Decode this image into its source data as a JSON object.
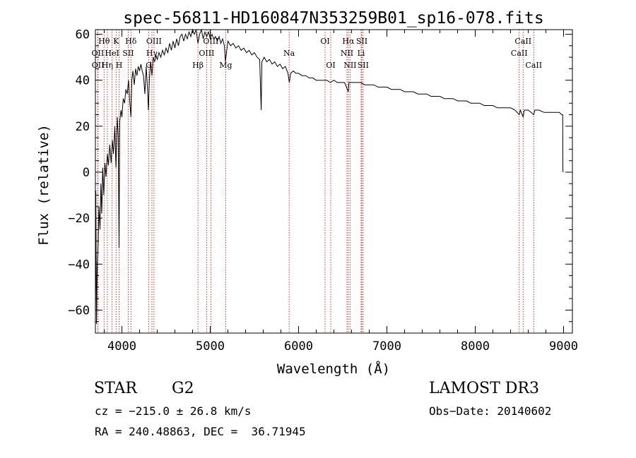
{
  "chart_data": {
    "type": "line",
    "title": "spec-56811-HD160847N353259B01_sp16-078.fits",
    "xlabel": "Wavelength (Å)",
    "ylabel": "Flux (relative)",
    "xlim": [
      3700,
      9100
    ],
    "ylim": [
      -70,
      62
    ],
    "xticks": [
      4000,
      5000,
      6000,
      7000,
      8000,
      9000
    ],
    "yticks": [
      -60,
      -40,
      -20,
      0,
      20,
      40,
      60
    ],
    "series": [
      {
        "name": "flux",
        "points": [
          [
            3700,
            -62
          ],
          [
            3705,
            -8
          ],
          [
            3712,
            -66
          ],
          [
            3720,
            -42
          ],
          [
            3730,
            -32
          ],
          [
            3740,
            -15
          ],
          [
            3752,
            -25
          ],
          [
            3762,
            -5
          ],
          [
            3772,
            -18
          ],
          [
            3782,
            2
          ],
          [
            3795,
            -10
          ],
          [
            3808,
            4
          ],
          [
            3820,
            -2
          ],
          [
            3835,
            8
          ],
          [
            3848,
            3
          ],
          [
            3862,
            12
          ],
          [
            3878,
            4
          ],
          [
            3892,
            14
          ],
          [
            3905,
            8
          ],
          [
            3920,
            20
          ],
          [
            3933,
            2
          ],
          [
            3948,
            24
          ],
          [
            3958,
            16
          ],
          [
            3968,
            -33
          ],
          [
            3975,
            22
          ],
          [
            3990,
            27
          ],
          [
            4000,
            24
          ],
          [
            4015,
            32
          ],
          [
            4030,
            30
          ],
          [
            4045,
            36
          ],
          [
            4060,
            34
          ],
          [
            4075,
            40
          ],
          [
            4090,
            30
          ],
          [
            4102,
            24
          ],
          [
            4112,
            40
          ],
          [
            4125,
            44
          ],
          [
            4140,
            38
          ],
          [
            4155,
            45
          ],
          [
            4170,
            42
          ],
          [
            4185,
            46
          ],
          [
            4200,
            44
          ],
          [
            4215,
            47
          ],
          [
            4230,
            44
          ],
          [
            4245,
            42
          ],
          [
            4260,
            34
          ],
          [
            4275,
            46
          ],
          [
            4290,
            36
          ],
          [
            4300,
            27
          ],
          [
            4310,
            40
          ],
          [
            4325,
            48
          ],
          [
            4340,
            42
          ],
          [
            4355,
            50
          ],
          [
            4370,
            48
          ],
          [
            4385,
            51
          ],
          [
            4400,
            49
          ],
          [
            4420,
            52
          ],
          [
            4440,
            50
          ],
          [
            4460,
            53
          ],
          [
            4480,
            51
          ],
          [
            4500,
            54
          ],
          [
            4520,
            52
          ],
          [
            4540,
            56
          ],
          [
            4560,
            53
          ],
          [
            4580,
            57
          ],
          [
            4600,
            54
          ],
          [
            4620,
            58
          ],
          [
            4640,
            55
          ],
          [
            4660,
            59
          ],
          [
            4680,
            60
          ],
          [
            4700,
            57
          ],
          [
            4720,
            60
          ],
          [
            4740,
            58
          ],
          [
            4760,
            61
          ],
          [
            4780,
            59
          ],
          [
            4800,
            62
          ],
          [
            4820,
            60
          ],
          [
            4840,
            62
          ],
          [
            4861,
            56
          ],
          [
            4880,
            60
          ],
          [
            4900,
            62
          ],
          [
            4920,
            58
          ],
          [
            4940,
            61
          ],
          [
            4960,
            59
          ],
          [
            4980,
            61
          ],
          [
            5000,
            58
          ],
          [
            5020,
            60
          ],
          [
            5040,
            58
          ],
          [
            5060,
            59
          ],
          [
            5080,
            57
          ],
          [
            5100,
            59
          ],
          [
            5120,
            56
          ],
          [
            5140,
            58
          ],
          [
            5160,
            55
          ],
          [
            5172,
            48
          ],
          [
            5184,
            52
          ],
          [
            5200,
            57
          ],
          [
            5230,
            55
          ],
          [
            5260,
            56
          ],
          [
            5290,
            54
          ],
          [
            5320,
            55
          ],
          [
            5350,
            53
          ],
          [
            5380,
            54
          ],
          [
            5410,
            52
          ],
          [
            5440,
            53
          ],
          [
            5470,
            51
          ],
          [
            5500,
            52
          ],
          [
            5530,
            50
          ],
          [
            5560,
            49
          ],
          [
            5577,
            27
          ],
          [
            5585,
            48
          ],
          [
            5610,
            50
          ],
          [
            5640,
            48
          ],
          [
            5670,
            49
          ],
          [
            5700,
            47
          ],
          [
            5730,
            48
          ],
          [
            5760,
            46
          ],
          [
            5790,
            47
          ],
          [
            5820,
            45
          ],
          [
            5850,
            46
          ],
          [
            5880,
            43
          ],
          [
            5895,
            39
          ],
          [
            5910,
            43
          ],
          [
            5940,
            44
          ],
          [
            5970,
            43
          ],
          [
            6000,
            43
          ],
          [
            6040,
            42
          ],
          [
            6080,
            42
          ],
          [
            6120,
            41
          ],
          [
            6160,
            41
          ],
          [
            6200,
            40
          ],
          [
            6240,
            40
          ],
          [
            6280,
            40
          ],
          [
            6320,
            40
          ],
          [
            6360,
            39
          ],
          [
            6400,
            40
          ],
          [
            6440,
            39
          ],
          [
            6480,
            39
          ],
          [
            6520,
            39
          ],
          [
            6563,
            35
          ],
          [
            6570,
            39
          ],
          [
            6600,
            39
          ],
          [
            6650,
            39
          ],
          [
            6700,
            39
          ],
          [
            6750,
            38
          ],
          [
            6800,
            38
          ],
          [
            6850,
            38
          ],
          [
            6900,
            37
          ],
          [
            6950,
            37
          ],
          [
            7000,
            37
          ],
          [
            7050,
            36
          ],
          [
            7100,
            36
          ],
          [
            7150,
            36
          ],
          [
            7200,
            35
          ],
          [
            7250,
            35
          ],
          [
            7300,
            35
          ],
          [
            7350,
            34
          ],
          [
            7400,
            34
          ],
          [
            7450,
            34
          ],
          [
            7500,
            33
          ],
          [
            7550,
            33
          ],
          [
            7600,
            33
          ],
          [
            7650,
            32
          ],
          [
            7700,
            32
          ],
          [
            7750,
            32
          ],
          [
            7800,
            31
          ],
          [
            7850,
            31
          ],
          [
            7900,
            31
          ],
          [
            7950,
            30
          ],
          [
            8000,
            30
          ],
          [
            8050,
            30
          ],
          [
            8100,
            29
          ],
          [
            8150,
            29
          ],
          [
            8200,
            29
          ],
          [
            8250,
            28
          ],
          [
            8300,
            28
          ],
          [
            8350,
            28
          ],
          [
            8400,
            28
          ],
          [
            8450,
            27
          ],
          [
            8498,
            25
          ],
          [
            8510,
            27
          ],
          [
            8542,
            24
          ],
          [
            8555,
            27
          ],
          [
            8600,
            27
          ],
          [
            8662,
            25
          ],
          [
            8675,
            27
          ],
          [
            8720,
            27
          ],
          [
            8780,
            26
          ],
          [
            8840,
            26
          ],
          [
            8900,
            26
          ],
          [
            8950,
            26
          ],
          [
            8980,
            25
          ],
          [
            8990,
            25
          ],
          [
            8992,
            1
          ],
          [
            8995,
            0
          ]
        ]
      }
    ],
    "line_markers": [
      {
        "label": "Hθ",
        "wavelength": 3798,
        "row": 0
      },
      {
        "label": "OII",
        "wavelength": 3727,
        "row": 1
      },
      {
        "label": "OII",
        "wavelength": 3729,
        "row": 2
      },
      {
        "label": "Hη",
        "wavelength": 3835,
        "row": 2
      },
      {
        "label": "HeI",
        "wavelength": 3889,
        "row": 1
      },
      {
        "label": "K",
        "wavelength": 3934,
        "row": 0
      },
      {
        "label": "H",
        "wavelength": 3968,
        "row": 2
      },
      {
        "label": "SII",
        "wavelength": 4072,
        "row": 1
      },
      {
        "label": "Hδ",
        "wavelength": 4102,
        "row": 0
      },
      {
        "label": "OIII",
        "wavelength": 4363,
        "row": 0
      },
      {
        "label": "Hγ",
        "wavelength": 4340,
        "row": 1
      },
      {
        "label": "G",
        "wavelength": 4305,
        "row": 2
      },
      {
        "label": "Hβ",
        "wavelength": 4861,
        "row": 2
      },
      {
        "label": "OIII",
        "wavelength": 4959,
        "row": 1
      },
      {
        "label": "OIII",
        "wavelength": 5007,
        "row": 0
      },
      {
        "label": "Mg",
        "wavelength": 5175,
        "row": 2
      },
      {
        "label": "Na",
        "wavelength": 5893,
        "row": 1
      },
      {
        "label": "OI",
        "wavelength": 6300,
        "row": 0
      },
      {
        "label": "OI",
        "wavelength": 6364,
        "row": 2
      },
      {
        "label": "Hα",
        "wavelength": 6563,
        "row": 0
      },
      {
        "label": "NII",
        "wavelength": 6548,
        "row": 1
      },
      {
        "label": "NII",
        "wavelength": 6583,
        "row": 2
      },
      {
        "label": "SII",
        "wavelength": 6716,
        "row": 0
      },
      {
        "label": "Li",
        "wavelength": 6708,
        "row": 1
      },
      {
        "label": "SII",
        "wavelength": 6731,
        "row": 2
      },
      {
        "label": "CaII",
        "wavelength": 8542,
        "row": 0
      },
      {
        "label": "CaII",
        "wavelength": 8498,
        "row": 1
      },
      {
        "label": "CaII",
        "wavelength": 8662,
        "row": 2
      }
    ]
  },
  "info": {
    "object_class": "STAR",
    "subclass": "G2",
    "survey": "LAMOST DR3",
    "cz": "cz = −215.0 ± 26.8 km/s",
    "obs_date": "Obs−Date: 20140602",
    "coords": "RA = 240.48863, DEC =  36.71945"
  },
  "colors": {
    "line": "#000000",
    "marker": "#cc0000",
    "axis": "#000000",
    "background": "#ffffff"
  }
}
